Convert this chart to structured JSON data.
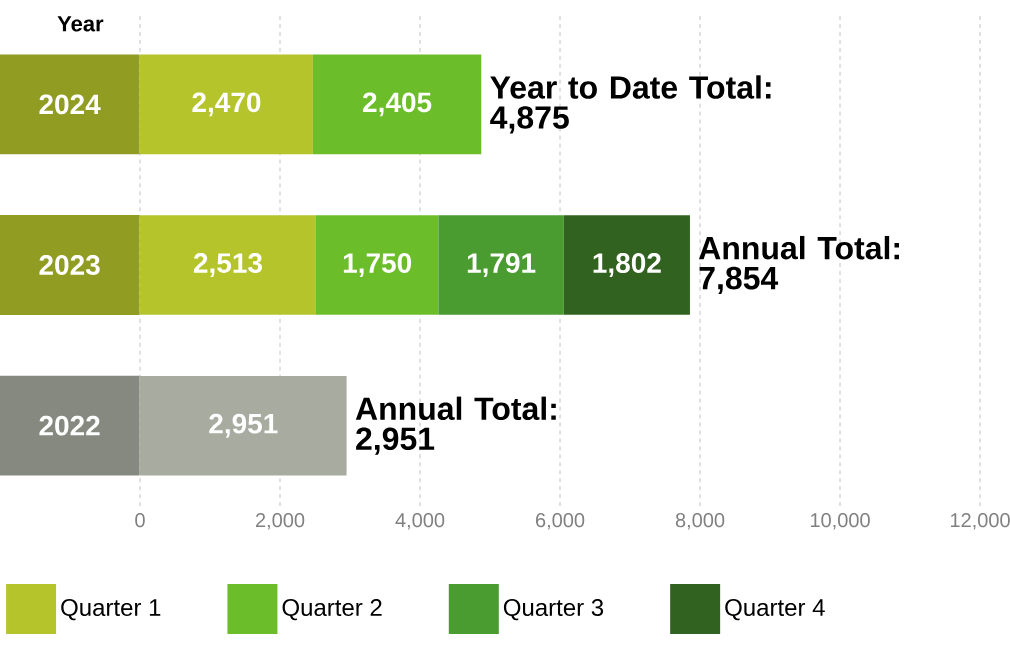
{
  "chart_data": {
    "type": "bar",
    "orientation": "horizontal",
    "stacked": true,
    "ylabel": "Year",
    "categories": [
      "2024",
      "2023",
      "2022"
    ],
    "series": [
      {
        "name": "Quarter 1",
        "color": "#b5c42a",
        "colors": [
          "#b5c42a",
          "#b5c42a",
          "#a8aba0"
        ],
        "values": [
          2470,
          2513,
          2951
        ],
        "value_labels": [
          "2,470",
          "2,513",
          "2,951"
        ]
      },
      {
        "name": "Quarter 2",
        "color": "#6cbd2a",
        "values": [
          2405,
          1750,
          null
        ],
        "value_labels": [
          "2,405",
          "1,750",
          null
        ]
      },
      {
        "name": "Quarter 3",
        "color": "#4a9c30",
        "values": [
          null,
          1791,
          null
        ],
        "value_labels": [
          null,
          "1,791",
          null
        ]
      },
      {
        "name": "Quarter 4",
        "color": "#32621f",
        "values": [
          null,
          1802,
          null
        ],
        "value_labels": [
          null,
          "1,802",
          null
        ]
      }
    ],
    "xlim": [
      0,
      12000
    ],
    "xticks": [
      0,
      {
        "value": 2000,
        "label": "2,000"
      },
      {
        "value": 4000,
        "label": "4,000"
      },
      {
        "value": 6000,
        "label": "6,000"
      },
      {
        "value": 8000,
        "label": "8,000"
      },
      {
        "value": 10000,
        "label": "10,000"
      },
      {
        "value": 12000,
        "label": "12,000"
      }
    ],
    "grid": "x",
    "legend": "bottom",
    "annotations": [
      {
        "text": "Year to Date Total: 4,875",
        "x": 4875,
        "y": "2024"
      },
      {
        "text": "Annual Total: 7,854",
        "x": 7854,
        "y": "2023"
      },
      {
        "text": "Annual Total: 2,951",
        "x": 2951,
        "y": "2022"
      }
    ]
  }
}
